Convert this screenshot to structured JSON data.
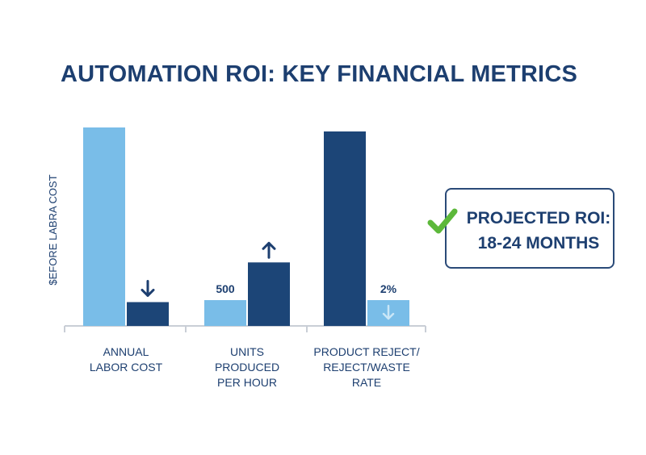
{
  "chart_data": {
    "type": "bar",
    "title": "AUTOMATION ROI: KEY FINANCIAL METRICS",
    "ylabel": "$EFORE LABRA COST",
    "ylim": [
      0,
      100
    ],
    "grid": false,
    "groups": [
      {
        "label_lines": [
          "ANNUAL",
          "LABOR COST"
        ],
        "bars": [
          {
            "value": 100,
            "color": "#79bde8",
            "label": "",
            "icon": ""
          },
          {
            "value": 12,
            "color": "#1c4577",
            "label": "",
            "icon": "arrow-down-icon"
          }
        ]
      },
      {
        "label_lines": [
          "UNITS",
          "PRODUCED",
          "PER HOUR"
        ],
        "bars": [
          {
            "value": 13,
            "color": "#79bde8",
            "label": "500",
            "icon": ""
          },
          {
            "value": 32,
            "color": "#1c4577",
            "label": "",
            "icon": "arrow-up-icon"
          }
        ]
      },
      {
        "label_lines": [
          "PRODUCT REJECT/",
          "REJECT/WASTE",
          "RATE"
        ],
        "bars": [
          {
            "value": 98,
            "color": "#1c4577",
            "label": "",
            "icon": ""
          },
          {
            "value": 13,
            "color": "#79bde8",
            "label": "2%",
            "icon": "arrow-down-light-icon"
          }
        ]
      }
    ]
  },
  "callout": {
    "line1": "PROJECTED ROI:",
    "line2": "18-24 MONTHS",
    "icon": "checkmark-icon",
    "check_color": "#5cb83a"
  },
  "colors": {
    "title": "#1d3f70",
    "light_bar": "#79bde8",
    "dark_bar": "#1c4577",
    "axis": "#c9ced6"
  }
}
